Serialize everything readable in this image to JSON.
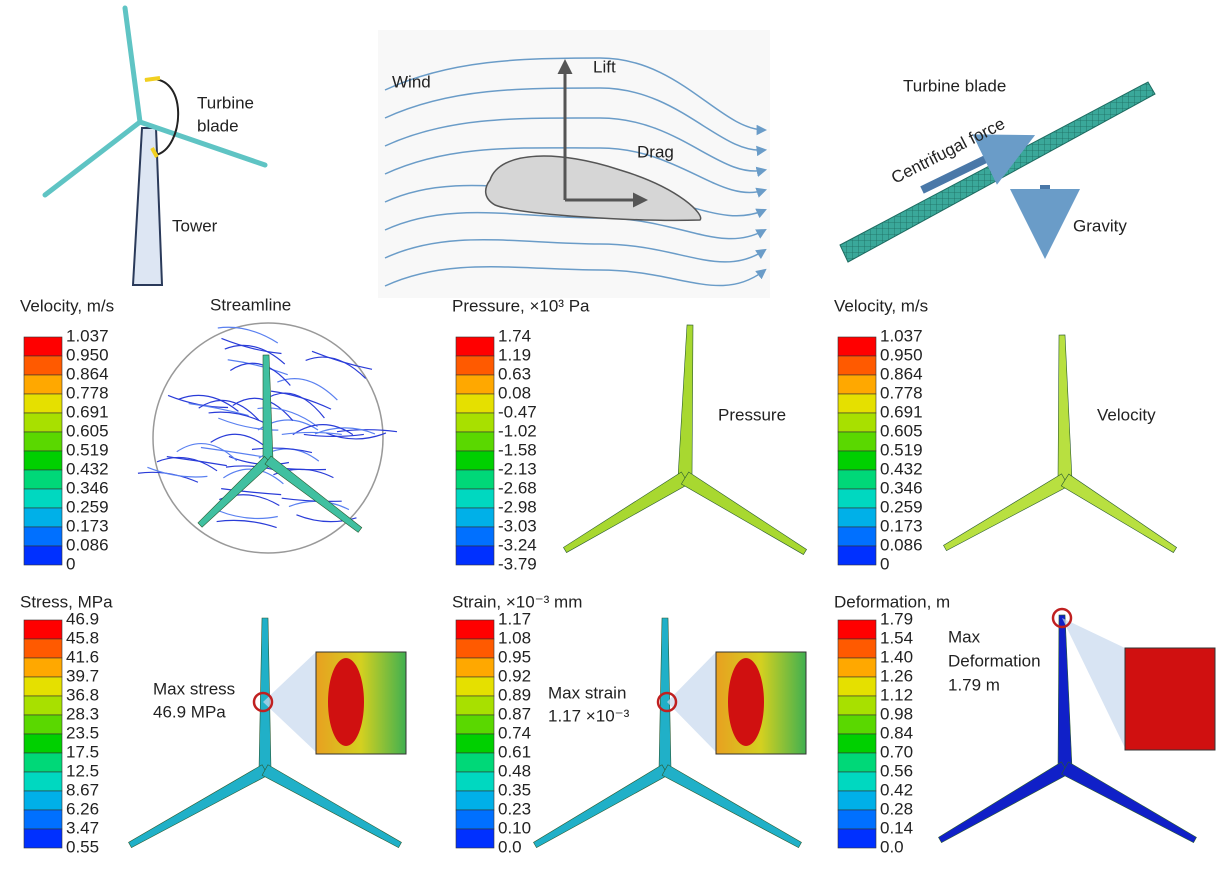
{
  "turbine": {
    "blade_label": [
      "Turbine",
      "blade"
    ],
    "tower_label": "Tower"
  },
  "airfoil": {
    "wind": "Wind",
    "lift": "Lift",
    "drag": "Drag"
  },
  "blade_loads": {
    "title": "Turbine blade",
    "centrifugal": "Centrifugal force",
    "gravity": "Gravity"
  },
  "captions": {
    "streamline": "Streamline",
    "pressure": "Pressure",
    "velocity": "Velocity"
  },
  "legends": [
    {
      "title": "Velocity, m/s",
      "labels": [
        "1.037",
        "0.950",
        "0.864",
        "0.778",
        "0.691",
        "0.605",
        "0.519",
        "0.432",
        "0.346",
        "0.259",
        "0.173",
        "0.086",
        "0"
      ]
    },
    {
      "title": "Pressure, ×10³ Pa",
      "labels": [
        "1.74",
        "1.19",
        "0.63",
        "0.08",
        "-0.47",
        "-1.02",
        "-1.58",
        "-2.13",
        "-2.68",
        "-2.98",
        "-3.03",
        "-3.24",
        "-3.79"
      ]
    },
    {
      "title": "Velocity, m/s",
      "labels": [
        "1.037",
        "0.950",
        "0.864",
        "0.778",
        "0.691",
        "0.605",
        "0.519",
        "0.432",
        "0.346",
        "0.259",
        "0.173",
        "0.086",
        "0"
      ]
    },
    {
      "title": "Stress, MPa",
      "labels": [
        "46.9",
        "45.8",
        "41.6",
        "39.7",
        "36.8",
        "28.3",
        "23.5",
        "17.5",
        "12.5",
        "8.67",
        "6.26",
        "3.47",
        "0.55"
      ]
    },
    {
      "title": "Strain, ×10⁻³ mm",
      "labels": [
        "1.17",
        "1.08",
        "0.95",
        "0.92",
        "0.89",
        "0.87",
        "0.74",
        "0.61",
        "0.48",
        "0.35",
        "0.23",
        "0.10",
        "0.0"
      ]
    },
    {
      "title": "Deformation, m",
      "labels": [
        "1.79",
        "1.54",
        "1.40",
        "1.26",
        "1.12",
        "0.98",
        "0.84",
        "0.70",
        "0.56",
        "0.42",
        "0.28",
        "0.14",
        "0.0"
      ]
    }
  ],
  "annotations": {
    "stress": [
      "Max stress",
      "46.9 MPa"
    ],
    "strain": [
      "Max strain",
      "1.17 ×10⁻³"
    ],
    "deformation": [
      "Max",
      "Deformation",
      "1.79 m"
    ]
  }
}
